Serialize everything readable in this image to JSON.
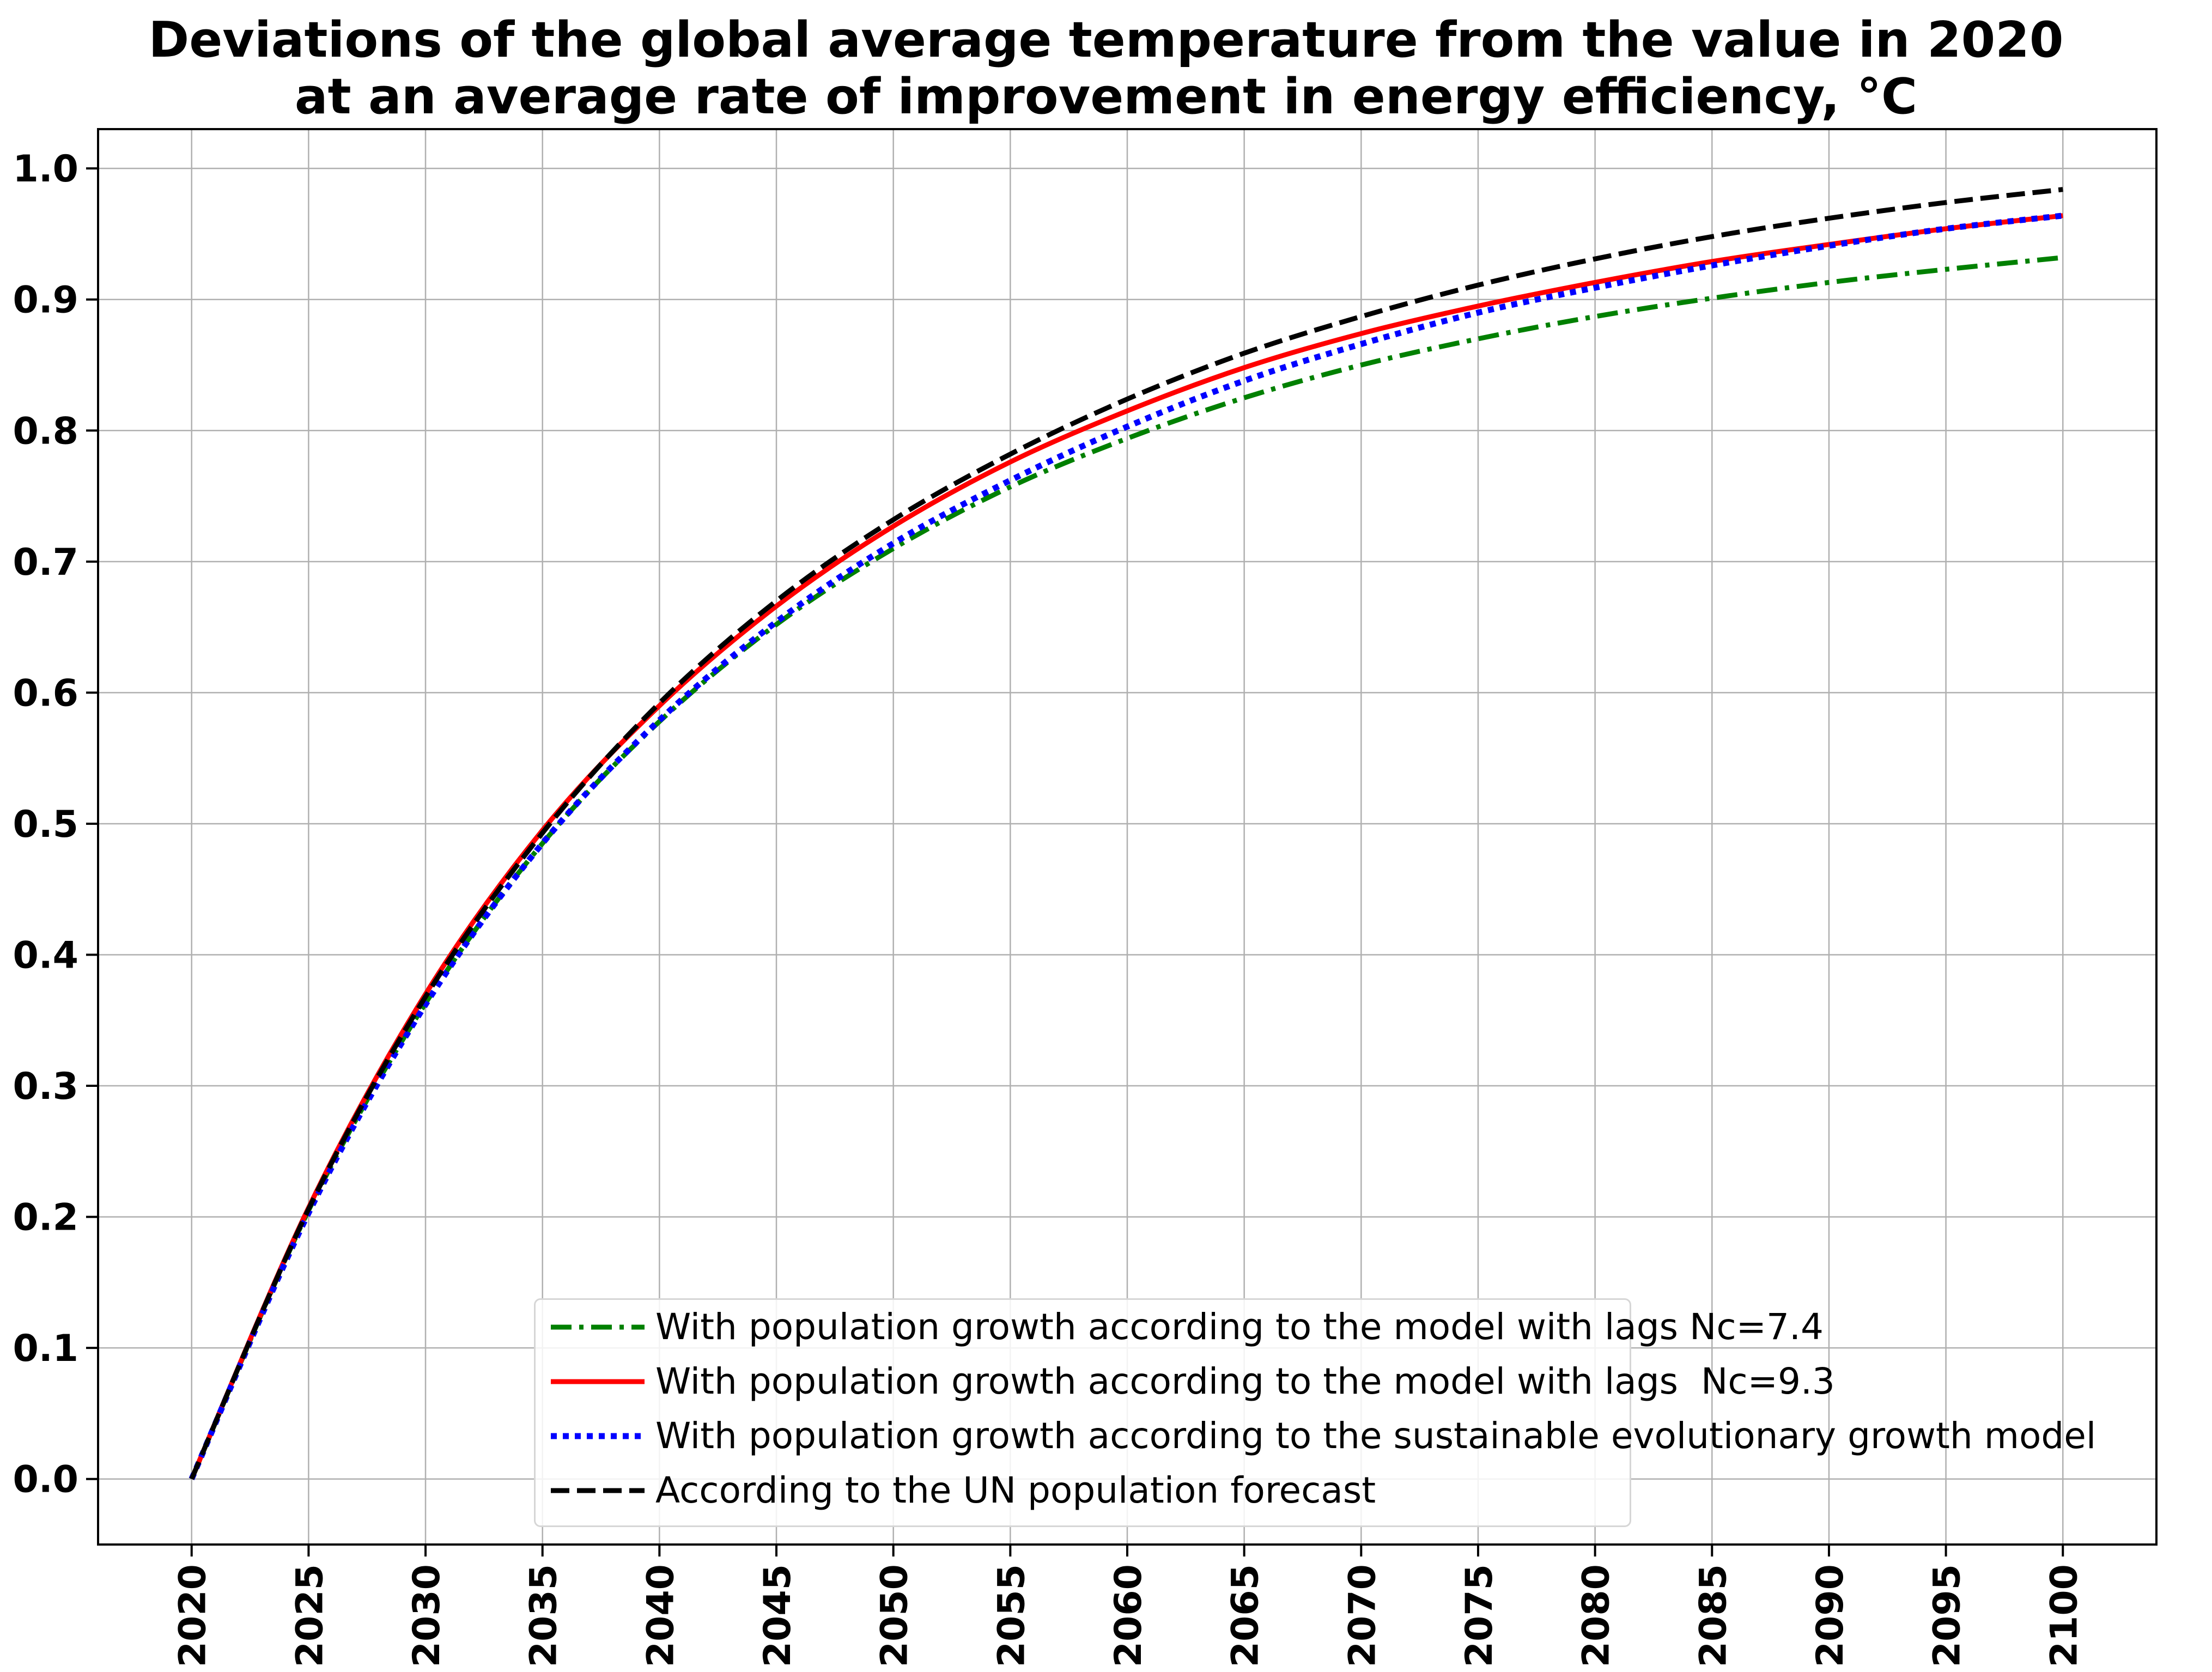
{
  "chart_data": {
    "type": "line",
    "title": [
      "Deviations of the global average temperature from the value in 2020",
      "at an average rate of improvement in energy efficiency, °C"
    ],
    "xlabel": "",
    "ylabel": "",
    "xlim": [
      2016,
      2104
    ],
    "ylim": [
      -0.05,
      1.03
    ],
    "grid": true,
    "legend_position": "lower-right",
    "x_ticks": [
      2020,
      2025,
      2030,
      2035,
      2040,
      2045,
      2050,
      2055,
      2060,
      2065,
      2070,
      2075,
      2080,
      2085,
      2090,
      2095,
      2100
    ],
    "y_ticks": [
      0.0,
      0.1,
      0.2,
      0.3,
      0.4,
      0.5,
      0.6,
      0.7,
      0.8,
      0.9,
      1.0
    ],
    "y_tick_labels": [
      "0.0",
      "0.1",
      "0.2",
      "0.3",
      "0.4",
      "0.5",
      "0.6",
      "0.7",
      "0.8",
      "0.9",
      "1.0"
    ],
    "x": [
      2020,
      2025,
      2030,
      2035,
      2040,
      2045,
      2050,
      2055,
      2060,
      2065,
      2070,
      2075,
      2080,
      2085,
      2090,
      2095,
      2100
    ],
    "series": [
      {
        "name": "With population growth according to the model with lags Nc=7.4",
        "color": "#008000",
        "style": "dash-dot",
        "values": [
          0.0,
          0.205,
          0.363,
          0.485,
          0.578,
          0.652,
          0.71,
          0.757,
          0.794,
          0.825,
          0.85,
          0.87,
          0.887,
          0.901,
          0.913,
          0.923,
          0.932
        ]
      },
      {
        "name": "With population growth according to the model with lags  Nc=9.3",
        "color": "#ff0000",
        "style": "solid",
        "values": [
          0.0,
          0.207,
          0.37,
          0.495,
          0.59,
          0.666,
          0.727,
          0.776,
          0.815,
          0.848,
          0.874,
          0.895,
          0.913,
          0.929,
          0.942,
          0.954,
          0.964
        ]
      },
      {
        "name": "With population growth according to the sustainable evolutionary growth model",
        "color": "#0000ff",
        "style": "dotted",
        "values": [
          0.0,
          0.203,
          0.362,
          0.485,
          0.579,
          0.654,
          0.714,
          0.762,
          0.803,
          0.838,
          0.866,
          0.89,
          0.909,
          0.926,
          0.941,
          0.954,
          0.964
        ]
      },
      {
        "name": "According to the UN population forecast",
        "color": "#000000",
        "style": "dashed",
        "values": [
          0.0,
          0.206,
          0.368,
          0.493,
          0.592,
          0.67,
          0.732,
          0.782,
          0.824,
          0.859,
          0.887,
          0.911,
          0.931,
          0.948,
          0.962,
          0.974,
          0.984
        ]
      }
    ]
  }
}
